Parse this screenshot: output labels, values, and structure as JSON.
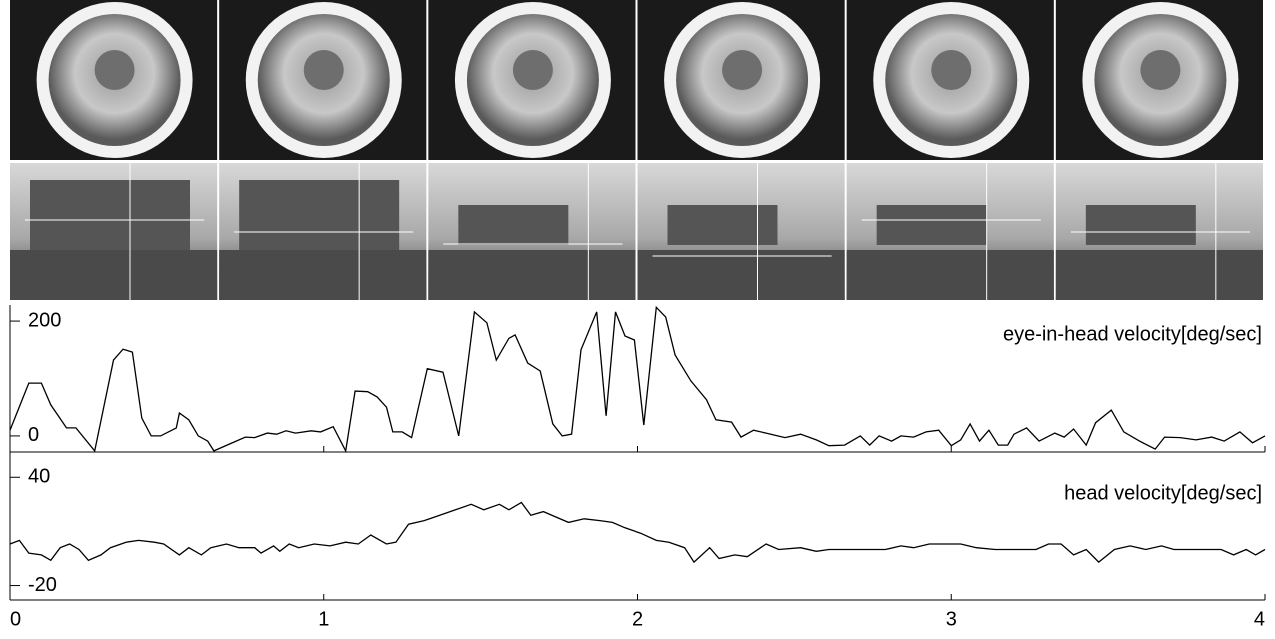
{
  "chart_data": [
    {
      "type": "line",
      "label": "eye-in-head velocity[deg/sec]",
      "x": [
        0,
        0.06,
        0.1,
        0.13,
        0.18,
        0.21,
        0.27,
        0.33,
        0.36,
        0.39,
        0.42,
        0.45,
        0.48,
        0.53,
        0.54,
        0.57,
        0.6,
        0.63,
        0.65,
        0.7,
        0.75,
        0.78,
        0.82,
        0.85,
        0.88,
        0.91,
        0.96,
        0.99,
        1.03,
        1.07,
        1.1,
        1.14,
        1.17,
        1.2,
        1.22,
        1.25,
        1.28,
        1.33,
        1.38,
        1.43,
        1.48,
        1.52,
        1.55,
        1.59,
        1.61,
        1.65,
        1.69,
        1.73,
        1.76,
        1.79,
        1.82,
        1.87,
        1.9,
        1.93,
        1.96,
        1.99,
        2.02,
        2.06,
        2.09,
        2.12,
        2.17,
        2.22,
        2.25,
        2.3,
        2.33,
        2.37,
        2.41,
        2.47,
        2.52,
        2.57,
        2.61,
        2.66,
        2.71,
        2.74,
        2.77,
        2.81,
        2.84,
        2.88,
        2.92,
        2.96,
        3,
        3.03,
        3.06,
        3.09,
        3.12,
        3.15,
        3.18,
        3.2,
        3.24,
        3.28,
        3.33,
        3.36,
        3.39,
        3.43,
        3.46,
        3.51,
        3.55,
        3.6,
        3.65,
        3.68,
        3.73,
        3.78,
        3.83,
        3.87,
        3.92,
        3.96,
        4
      ],
      "series": [
        {
          "color": "#000000",
          "values": [
            10,
            92,
            92,
            54,
            14,
            14,
            -26,
            132,
            151,
            146,
            31,
            0,
            0,
            14,
            40,
            28,
            0,
            -9,
            -26,
            -14,
            -2,
            -3,
            5,
            3,
            9,
            5,
            9,
            7,
            16,
            -26,
            78,
            77,
            68,
            50,
            7,
            7,
            -3,
            117,
            111,
            0,
            216,
            197,
            132,
            170,
            176,
            127,
            113,
            21,
            0,
            3,
            150,
            216,
            35,
            216,
            174,
            167,
            19,
            224,
            207,
            141,
            96,
            63,
            28,
            24,
            -2,
            10,
            5,
            -3,
            3,
            -7,
            -17,
            -16,
            0,
            -16,
            0,
            -9,
            0,
            -2,
            7,
            10,
            -17,
            -7,
            21,
            -9,
            10,
            -16,
            -16,
            3,
            14,
            -9,
            5,
            -2,
            12,
            -16,
            23,
            45,
            7,
            -9,
            -23,
            -2,
            -3,
            -7,
            -2,
            -9,
            7,
            -12,
            0
          ]
        }
      ],
      "xlim": [
        0,
        4
      ],
      "xticks": [
        0,
        1,
        2,
        3,
        4
      ],
      "ylim": [
        -28,
        228
      ],
      "yticks": [
        0,
        200
      ]
    },
    {
      "type": "line",
      "label": "head velocity[deg/sec]",
      "x": [
        0,
        0.03,
        0.06,
        0.1,
        0.13,
        0.16,
        0.19,
        0.22,
        0.25,
        0.29,
        0.32,
        0.37,
        0.41,
        0.46,
        0.49,
        0.54,
        0.57,
        0.61,
        0.64,
        0.69,
        0.73,
        0.78,
        0.8,
        0.84,
        0.86,
        0.89,
        0.92,
        0.97,
        1.02,
        1.07,
        1.11,
        1.15,
        1.2,
        1.23,
        1.27,
        1.32,
        1.37,
        1.42,
        1.47,
        1.51,
        1.56,
        1.59,
        1.63,
        1.66,
        1.7,
        1.74,
        1.78,
        1.83,
        1.88,
        1.92,
        1.96,
        2.01,
        2.06,
        2.1,
        2.15,
        2.18,
        2.23,
        2.26,
        2.31,
        2.35,
        2.41,
        2.45,
        2.52,
        2.57,
        2.61,
        2.66,
        2.73,
        2.79,
        2.84,
        2.88,
        2.93,
        2.98,
        3.03,
        3.08,
        3.14,
        3.2,
        3.27,
        3.31,
        3.35,
        3.39,
        3.43,
        3.47,
        3.52,
        3.57,
        3.62,
        3.67,
        3.71,
        3.76,
        3.81,
        3.86,
        3.9,
        3.94,
        3.97,
        4
      ],
      "series": [
        {
          "color": "#000000",
          "values": [
            3,
            5,
            -2,
            -3,
            -6,
            1,
            3,
            0,
            -6,
            -3,
            1,
            4,
            5,
            4,
            3,
            -3,
            1,
            -3,
            1,
            3,
            1,
            1,
            -2,
            2,
            -1,
            3,
            1,
            3,
            2,
            4,
            3,
            8,
            3,
            4,
            14,
            16,
            19,
            22,
            25,
            22,
            25,
            22,
            26,
            19,
            21,
            18,
            15,
            17,
            16,
            15,
            12,
            9,
            5,
            4,
            1,
            -7,
            1,
            -5,
            -3,
            -4,
            3,
            0,
            1,
            -1,
            0,
            0,
            0,
            0,
            2,
            1,
            3,
            3,
            3,
            1,
            0,
            0,
            0,
            3,
            3,
            -3,
            0,
            -7,
            0,
            2,
            0,
            2,
            0,
            0,
            0,
            0,
            -3,
            0,
            -3,
            0
          ]
        }
      ],
      "xlim": [
        0,
        4
      ],
      "xticks": [
        0,
        1,
        2,
        3,
        4
      ],
      "ylim": [
        -28,
        54
      ],
      "yticks": [
        40,
        -20
      ]
    }
  ]
}
